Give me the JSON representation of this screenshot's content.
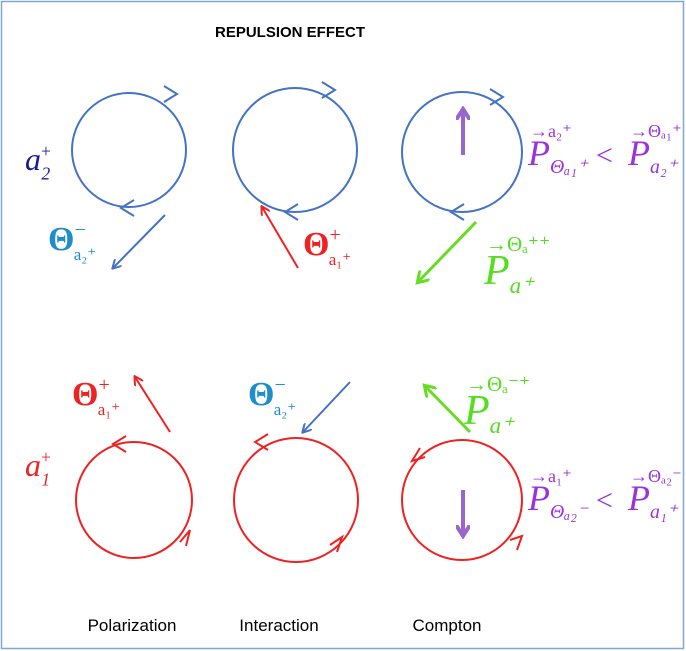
{
  "title": "REPULSION EFFECT",
  "columns": [
    "Polarization",
    "Interaction",
    "Compton"
  ],
  "particles": [
    {
      "base": "a",
      "sub": "2",
      "sup": "+"
    },
    {
      "base": "a",
      "sub": "1",
      "sup": "+"
    }
  ],
  "thetas": [
    {
      "base": "Θ",
      "sup": "−",
      "sub": "a₂⁺"
    },
    {
      "base": "Θ",
      "sup": "+",
      "sub": "a₁⁺"
    },
    {
      "base": "Θ",
      "sup": "+",
      "sub": "a₁⁺"
    },
    {
      "base": "Θ",
      "sup": "−",
      "sub": "a₂⁺"
    }
  ],
  "momenta": [
    {
      "base": "P",
      "over": "→Θₐ⁺⁺",
      "sub": "a⁺"
    },
    {
      "base": "P",
      "over": "→Θₐ⁻⁺",
      "sub": "a⁺"
    }
  ],
  "inequalities": [
    {
      "left": {
        "base": "P",
        "over": "→a₂⁺",
        "sub": "Θₐ₁⁺"
      },
      "op": "<",
      "right": {
        "base": "P",
        "over": "→Θₐ₁⁺",
        "sub": "a₂⁺"
      }
    },
    {
      "left": {
        "base": "P",
        "over": "→a₁⁺",
        "sub": "Θₐ₂⁻"
      },
      "op": "<",
      "right": {
        "base": "P",
        "over": "→Θₐ₂⁻",
        "sub": "a₁⁺"
      }
    }
  ]
}
